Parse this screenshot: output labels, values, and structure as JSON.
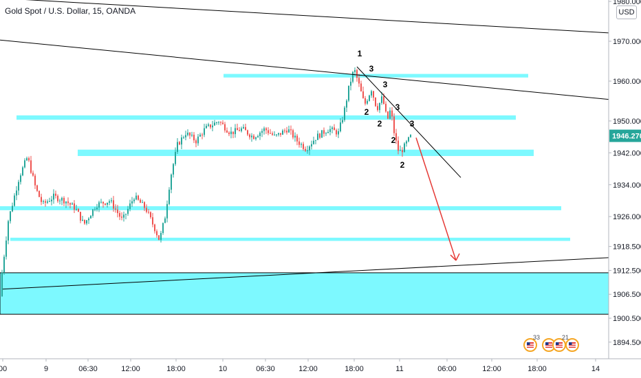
{
  "header": {
    "symbol_title": "Gold Spot / U.S. Dollar, 15, OANDA",
    "currency": "USD"
  },
  "chart_data": {
    "type": "candlestick",
    "y_ticks": [
      1980.0,
      1970.0,
      1960.0,
      1950.0,
      1942.0,
      1934.0,
      1926.0,
      1918.5,
      1912.5,
      1906.5,
      1900.5,
      1894.5
    ],
    "y_tick_labels": [
      "1980.000",
      "1970.000",
      "1960.000",
      "1950.000",
      "1942.000",
      "1934.000",
      "1926.000",
      "1918.500",
      "1912.500",
      "1906.500",
      "1900.500",
      "1894.500"
    ],
    "x_tick_labels": [
      "00",
      "9",
      "06:30",
      "12:00",
      "18:00",
      "10",
      "06:30",
      "12:00",
      "18:00",
      "11",
      "06:00",
      "12:00",
      "18:00",
      "14"
    ],
    "last_price": "1946.270",
    "colors": {
      "up": "#26a69a",
      "down": "#ef5350",
      "zone": "#7df9ff",
      "trendline": "#000000",
      "projection": "#e53935",
      "price_tag": "#26a69a"
    },
    "zones": [
      {
        "from": 1960.9,
        "to": 1961.8
      },
      {
        "from": 1950.3,
        "to": 1951.4
      },
      {
        "from": 1941.2,
        "to": 1942.8
      },
      {
        "from": 1927.6,
        "to": 1928.6
      },
      {
        "from": 1919.9,
        "to": 1920.7
      },
      {
        "from": 1901.5,
        "to": 1911.9
      }
    ],
    "wave_labels": [
      "1",
      "3",
      "3",
      "3",
      "3",
      "2",
      "2",
      "2",
      "2"
    ],
    "event_flags": [
      {
        "icon": "us-flag-icon",
        "count": "33"
      },
      {
        "icon": "us-flag-icon",
        "count": ""
      },
      {
        "icon": "us-flag-icon",
        "count": "21"
      },
      {
        "icon": "us-flag-icon",
        "count": ""
      }
    ],
    "candles": []
  }
}
